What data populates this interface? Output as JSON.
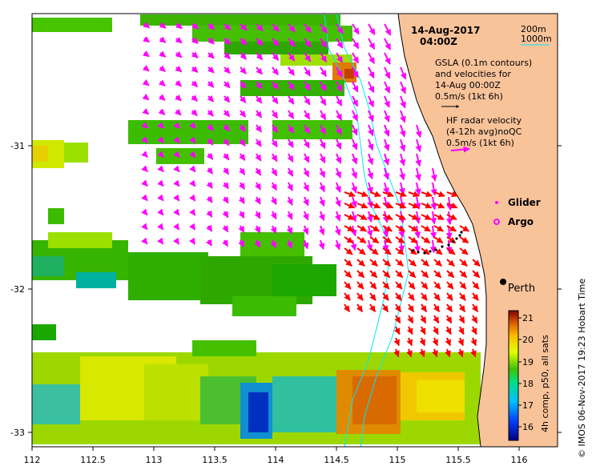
{
  "map": {
    "date": "14-Aug-2017",
    "time": "04:00Z",
    "contours": [
      "200m",
      "1000m"
    ],
    "gsla_lines": [
      "GSLA (0.1m contours)",
      "and velocities for",
      "14-Aug 00:00Z",
      "0.5m/s (1kt 6h)"
    ],
    "hf_lines": [
      "HF radar velocity",
      "(4-12h avg)noQC",
      "0.5m/s (1kt 6h)"
    ],
    "glider_label": "Glider",
    "argo_label": "Argo",
    "city": "Perth",
    "x_ticks": [
      "112",
      "112.5",
      "113",
      "113.5",
      "114",
      "114.5",
      "115",
      "115.5",
      "116"
    ],
    "y_ticks": [
      "-31",
      "-32",
      "-33"
    ],
    "colorbar_ticks": [
      "21",
      "20",
      "19",
      "18",
      "17",
      "16"
    ],
    "colorbar_label": "4h comp, p50, all sats",
    "credit": "© IMOS 06-Nov-2017 19:23 Hobart Time",
    "colors": {
      "land": "#f9c39a",
      "gsla_arrow": "#ff00ff",
      "hf_arrow": "#ff0000",
      "contour": "#00e5ff"
    }
  }
}
